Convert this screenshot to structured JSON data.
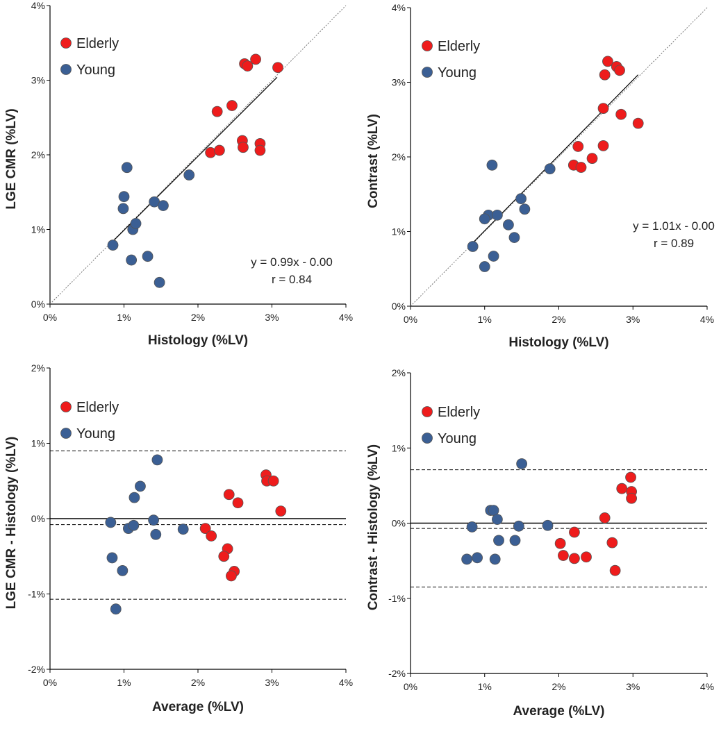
{
  "colors": {
    "elderly": "#ee1c1c",
    "young": "#3b5f94",
    "marker_edge": "#555555",
    "axis": "#000000"
  },
  "chart_data": [
    {
      "type": "scatter",
      "panel": "top-left",
      "xlabel": "Histology (%LV)",
      "ylabel": "LGE CMR (%LV)",
      "xlim": [
        0,
        4
      ],
      "ylim": [
        0,
        4
      ],
      "xticks": [
        "0%",
        "1%",
        "2%",
        "3%",
        "4%"
      ],
      "yticks": [
        "0%",
        "1%",
        "2%",
        "3%",
        "4%"
      ],
      "identity_line": true,
      "fit_line": {
        "slope": 0.99,
        "intercept": 0.0,
        "x_range": [
          0.85,
          3.07
        ]
      },
      "hlines": [],
      "equation": "y = 0.99x - 0.00",
      "r_text": "r = 0.84",
      "legend": {
        "placement": "top-left",
        "entries": [
          "Elderly",
          "Young"
        ]
      },
      "series": [
        {
          "name": "Elderly",
          "points": [
            [
              2.26,
              2.58
            ],
            [
              2.46,
              2.66
            ],
            [
              2.63,
              3.22
            ],
            [
              2.67,
              3.19
            ],
            [
              2.78,
              3.28
            ],
            [
              3.08,
              3.17
            ],
            [
              2.17,
              2.03
            ],
            [
              2.29,
              2.06
            ],
            [
              2.6,
              2.19
            ],
            [
              2.61,
              2.1
            ],
            [
              2.84,
              2.15
            ],
            [
              2.84,
              2.06
            ]
          ]
        },
        {
          "name": "Young",
          "points": [
            [
              0.85,
              0.79
            ],
            [
              1.0,
              1.44
            ],
            [
              0.99,
              1.28
            ],
            [
              1.04,
              1.83
            ],
            [
              1.12,
              1.0
            ],
            [
              1.16,
              1.08
            ],
            [
              1.1,
              0.59
            ],
            [
              1.32,
              0.64
            ],
            [
              1.41,
              1.37
            ],
            [
              1.53,
              1.32
            ],
            [
              1.48,
              0.29
            ],
            [
              1.88,
              1.73
            ]
          ]
        }
      ]
    },
    {
      "type": "scatter",
      "panel": "top-right",
      "xlabel": "Histology (%LV)",
      "ylabel": "Contrast (%LV)",
      "xlim": [
        0,
        4
      ],
      "ylim": [
        0,
        4
      ],
      "xticks": [
        "0%",
        "1%",
        "2%",
        "3%",
        "4%"
      ],
      "yticks": [
        "0%",
        "1%",
        "2%",
        "3%",
        "4%"
      ],
      "identity_line": true,
      "fit_line": {
        "slope": 1.01,
        "intercept": 0.0,
        "x_range": [
          0.85,
          3.07
        ]
      },
      "hlines": [],
      "equation": "y = 1.01x - 0.00",
      "r_text": "r = 0.89",
      "legend": {
        "placement": "top-left",
        "entries": [
          "Elderly",
          "Young"
        ]
      },
      "series": [
        {
          "name": "Elderly",
          "points": [
            [
              2.66,
              3.28
            ],
            [
              2.78,
              3.21
            ],
            [
              2.82,
              3.16
            ],
            [
              2.62,
              3.1
            ],
            [
              2.6,
              2.65
            ],
            [
              2.84,
              2.57
            ],
            [
              3.07,
              2.45
            ],
            [
              2.26,
              2.14
            ],
            [
              2.6,
              2.15
            ],
            [
              2.45,
              1.98
            ],
            [
              2.2,
              1.89
            ],
            [
              2.3,
              1.86
            ]
          ]
        },
        {
          "name": "Young",
          "points": [
            [
              1.1,
              1.89
            ],
            [
              1.88,
              1.84
            ],
            [
              1.49,
              1.44
            ],
            [
              1.54,
              1.3
            ],
            [
              1.05,
              1.22
            ],
            [
              1.17,
              1.22
            ],
            [
              1.0,
              1.17
            ],
            [
              1.32,
              1.09
            ],
            [
              1.4,
              0.92
            ],
            [
              0.84,
              0.8
            ],
            [
              1.12,
              0.67
            ],
            [
              1.0,
              0.53
            ]
          ]
        }
      ]
    },
    {
      "type": "scatter",
      "panel": "bottom-left",
      "xlabel": "Average (%LV)",
      "ylabel": "LGE CMR - Histology (%LV)",
      "xlim": [
        0,
        4
      ],
      "ylim": [
        -2,
        2
      ],
      "xticks": [
        "0%",
        "1%",
        "2%",
        "3%",
        "4%"
      ],
      "yticks": [
        "-2%",
        "-1%",
        "0%",
        "1%",
        "2%"
      ],
      "identity_line": false,
      "fit_line": null,
      "hlines": [
        {
          "y": 0.0,
          "style": "solid"
        },
        {
          "y": -0.08,
          "style": "dashed"
        },
        {
          "y": 0.9,
          "style": "dashed"
        },
        {
          "y": -1.07,
          "style": "dashed"
        }
      ],
      "equation": "",
      "r_text": "",
      "legend": {
        "placement": "top-left",
        "entries": [
          "Elderly",
          "Young"
        ]
      },
      "series": [
        {
          "name": "Elderly",
          "points": [
            [
              2.92,
              0.58
            ],
            [
              2.93,
              0.5
            ],
            [
              3.02,
              0.5
            ],
            [
              3.12,
              0.1
            ],
            [
              2.42,
              0.32
            ],
            [
              2.54,
              0.21
            ],
            [
              2.1,
              -0.13
            ],
            [
              2.18,
              -0.23
            ],
            [
              2.4,
              -0.4
            ],
            [
              2.35,
              -0.5
            ],
            [
              2.49,
              -0.7
            ],
            [
              2.45,
              -0.76
            ]
          ]
        },
        {
          "name": "Young",
          "points": [
            [
              1.45,
              0.78
            ],
            [
              1.22,
              0.43
            ],
            [
              1.14,
              0.28
            ],
            [
              0.82,
              -0.05
            ],
            [
              1.06,
              -0.13
            ],
            [
              1.13,
              -0.09
            ],
            [
              1.4,
              -0.02
            ],
            [
              1.43,
              -0.21
            ],
            [
              1.8,
              -0.14
            ],
            [
              0.84,
              -0.52
            ],
            [
              0.98,
              -0.69
            ],
            [
              0.89,
              -1.2
            ]
          ]
        }
      ]
    },
    {
      "type": "scatter",
      "panel": "bottom-right",
      "xlabel": "Average (%LV)",
      "ylabel": "Contrast - Histology (%LV)",
      "xlim": [
        0,
        4
      ],
      "ylim": [
        -2,
        2
      ],
      "xticks": [
        "0%",
        "1%",
        "2%",
        "3%",
        "4%"
      ],
      "yticks": [
        "-2%",
        "-1%",
        "0%",
        "1%",
        "2%"
      ],
      "identity_line": false,
      "fit_line": null,
      "hlines": [
        {
          "y": 0.0,
          "style": "solid"
        },
        {
          "y": -0.07,
          "style": "dashed"
        },
        {
          "y": 0.71,
          "style": "dashed"
        },
        {
          "y": -0.85,
          "style": "dashed"
        }
      ],
      "equation": "",
      "r_text": "",
      "legend": {
        "placement": "top-left",
        "entries": [
          "Elderly",
          "Young"
        ]
      },
      "series": [
        {
          "name": "Elderly",
          "points": [
            [
              2.97,
              0.61
            ],
            [
              2.85,
              0.46
            ],
            [
              2.98,
              0.42
            ],
            [
              2.98,
              0.33
            ],
            [
              2.62,
              0.07
            ],
            [
              2.02,
              -0.27
            ],
            [
              2.21,
              -0.12
            ],
            [
              2.06,
              -0.43
            ],
            [
              2.21,
              -0.47
            ],
            [
              2.37,
              -0.45
            ],
            [
              2.72,
              -0.26
            ],
            [
              2.76,
              -0.63
            ]
          ]
        },
        {
          "name": "Young",
          "points": [
            [
              1.5,
              0.79
            ],
            [
              1.08,
              0.17
            ],
            [
              1.12,
              0.17
            ],
            [
              1.17,
              0.05
            ],
            [
              0.83,
              -0.05
            ],
            [
              1.46,
              -0.04
            ],
            [
              1.85,
              -0.03
            ],
            [
              1.19,
              -0.23
            ],
            [
              1.41,
              -0.23
            ],
            [
              0.76,
              -0.48
            ],
            [
              0.9,
              -0.46
            ],
            [
              1.14,
              -0.48
            ]
          ]
        }
      ]
    }
  ]
}
